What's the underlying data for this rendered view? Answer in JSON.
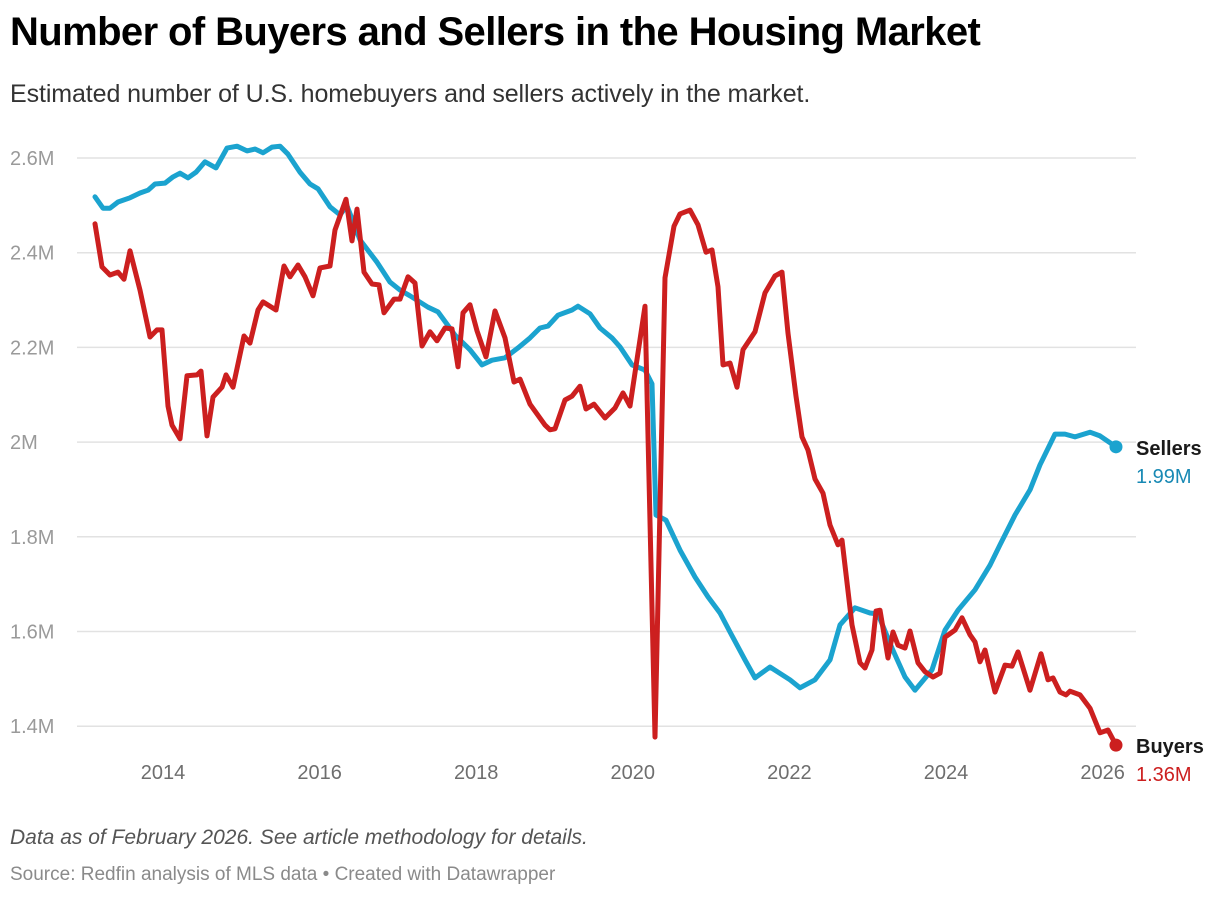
{
  "header": {
    "title": "Number of Buyers and Sellers in the Housing Market",
    "subtitle": "Estimated number of U.S. homebuyers and sellers actively in the market."
  },
  "footer": {
    "notes": "Data as of February 2026. See article methodology for details.",
    "source_prefix": "Source: ",
    "source": "Redfin analysis of MLS data",
    "separator": " • ",
    "credit": "Created with Datawrapper"
  },
  "chart_data": {
    "type": "line",
    "title": "Number of Buyers and Sellers in the Housing Market",
    "subtitle": "Estimated number of U.S. homebuyers and sellers actively in the market.",
    "xlabel": "",
    "ylabel": "",
    "x_unit": "year (decimal)",
    "y_unit": "millions",
    "xlim": [
      2013.0,
      2026.2
    ],
    "ylim": [
      1.36,
      2.66
    ],
    "grid": true,
    "legend": "direct labels at line ends (right)",
    "y_ticks": [
      1.4,
      1.6,
      1.8,
      2.0,
      2.2,
      2.4,
      2.6
    ],
    "y_tick_labels": [
      "1.4M",
      "1.6M",
      "1.8M",
      "2M",
      "2.2M",
      "2.4M",
      "2.6M"
    ],
    "x_ticks": [
      2014,
      2016,
      2018,
      2020,
      2022,
      2024,
      2026
    ],
    "x_tick_labels": [
      "2014",
      "2016",
      "2018",
      "2020",
      "2022",
      "2024",
      "2026"
    ],
    "series": [
      {
        "name": "Sellers",
        "end_label": "1.99M",
        "color": "#1ba3cf",
        "label_color": "#1889b4",
        "points": [
          [
            2013.132,
            2.518
          ],
          [
            2013.234,
            2.494
          ],
          [
            2013.323,
            2.494
          ],
          [
            2013.425,
            2.507
          ],
          [
            2013.579,
            2.516
          ],
          [
            2013.706,
            2.526
          ],
          [
            2013.808,
            2.532
          ],
          [
            2013.898,
            2.545
          ],
          [
            2014.026,
            2.547
          ],
          [
            2014.128,
            2.56
          ],
          [
            2014.217,
            2.568
          ],
          [
            2014.319,
            2.558
          ],
          [
            2014.421,
            2.57
          ],
          [
            2014.536,
            2.592
          ],
          [
            2014.677,
            2.579
          ],
          [
            2014.817,
            2.621
          ],
          [
            2014.945,
            2.625
          ],
          [
            2015.073,
            2.615
          ],
          [
            2015.175,
            2.619
          ],
          [
            2015.277,
            2.611
          ],
          [
            2015.392,
            2.623
          ],
          [
            2015.494,
            2.625
          ],
          [
            2015.596,
            2.608
          ],
          [
            2015.75,
            2.57
          ],
          [
            2015.877,
            2.545
          ],
          [
            2015.98,
            2.535
          ],
          [
            2016.133,
            2.497
          ],
          [
            2016.261,
            2.48
          ],
          [
            2016.35,
            2.499
          ],
          [
            2016.516,
            2.427
          ],
          [
            2016.733,
            2.38
          ],
          [
            2016.899,
            2.338
          ],
          [
            2017.027,
            2.321
          ],
          [
            2017.155,
            2.309
          ],
          [
            2017.384,
            2.285
          ],
          [
            2017.512,
            2.275
          ],
          [
            2017.729,
            2.226
          ],
          [
            2017.921,
            2.195
          ],
          [
            2018.074,
            2.163
          ],
          [
            2018.202,
            2.173
          ],
          [
            2018.368,
            2.178
          ],
          [
            2018.534,
            2.199
          ],
          [
            2018.687,
            2.22
          ],
          [
            2018.815,
            2.241
          ],
          [
            2018.917,
            2.245
          ],
          [
            2019.045,
            2.268
          ],
          [
            2019.224,
            2.279
          ],
          [
            2019.3,
            2.287
          ],
          [
            2019.453,
            2.271
          ],
          [
            2019.581,
            2.241
          ],
          [
            2019.734,
            2.22
          ],
          [
            2019.837,
            2.201
          ],
          [
            2019.99,
            2.163
          ],
          [
            2020.156,
            2.152
          ],
          [
            2020.245,
            2.123
          ],
          [
            2020.296,
            1.846
          ],
          [
            2020.424,
            1.835
          ],
          [
            2020.603,
            1.772
          ],
          [
            2020.794,
            1.715
          ],
          [
            2020.96,
            1.673
          ],
          [
            2021.114,
            1.639
          ],
          [
            2021.241,
            1.599
          ],
          [
            2021.433,
            1.54
          ],
          [
            2021.561,
            1.502
          ],
          [
            2021.752,
            1.525
          ],
          [
            2022.008,
            1.498
          ],
          [
            2022.135,
            1.481
          ],
          [
            2022.327,
            1.498
          ],
          [
            2022.519,
            1.54
          ],
          [
            2022.646,
            1.614
          ],
          [
            2022.838,
            1.65
          ],
          [
            2023.029,
            1.639
          ],
          [
            2023.132,
            1.637
          ],
          [
            2023.31,
            1.565
          ],
          [
            2023.476,
            1.504
          ],
          [
            2023.604,
            1.476
          ],
          [
            2023.821,
            1.519
          ],
          [
            2023.987,
            1.603
          ],
          [
            2024.153,
            1.645
          ],
          [
            2024.37,
            1.688
          ],
          [
            2024.562,
            1.74
          ],
          [
            2024.69,
            1.783
          ],
          [
            2024.881,
            1.846
          ],
          [
            2025.073,
            1.899
          ],
          [
            2025.201,
            1.952
          ],
          [
            2025.392,
            2.017
          ],
          [
            2025.52,
            2.017
          ],
          [
            2025.648,
            2.011
          ],
          [
            2025.839,
            2.021
          ],
          [
            2025.967,
            2.013
          ],
          [
            2026.171,
            1.99
          ]
        ]
      },
      {
        "name": "Buyers",
        "end_label": "1.36M",
        "color": "#cc1f1f",
        "label_color": "#cc1f1f",
        "points": [
          [
            2013.132,
            2.461
          ],
          [
            2013.221,
            2.37
          ],
          [
            2013.323,
            2.353
          ],
          [
            2013.425,
            2.359
          ],
          [
            2013.502,
            2.344
          ],
          [
            2013.579,
            2.404
          ],
          [
            2013.706,
            2.321
          ],
          [
            2013.834,
            2.222
          ],
          [
            2013.923,
            2.237
          ],
          [
            2013.987,
            2.237
          ],
          [
            2014.064,
            2.076
          ],
          [
            2014.115,
            2.036
          ],
          [
            2014.217,
            2.007
          ],
          [
            2014.307,
            2.14
          ],
          [
            2014.434,
            2.142
          ],
          [
            2014.485,
            2.15
          ],
          [
            2014.562,
            2.013
          ],
          [
            2014.639,
            2.095
          ],
          [
            2014.754,
            2.116
          ],
          [
            2014.805,
            2.142
          ],
          [
            2014.894,
            2.116
          ],
          [
            2015.034,
            2.224
          ],
          [
            2015.111,
            2.209
          ],
          [
            2015.213,
            2.279
          ],
          [
            2015.277,
            2.296
          ],
          [
            2015.443,
            2.279
          ],
          [
            2015.545,
            2.372
          ],
          [
            2015.622,
            2.349
          ],
          [
            2015.724,
            2.374
          ],
          [
            2015.814,
            2.349
          ],
          [
            2015.916,
            2.309
          ],
          [
            2016.005,
            2.368
          ],
          [
            2016.133,
            2.372
          ],
          [
            2016.197,
            2.448
          ],
          [
            2016.337,
            2.513
          ],
          [
            2016.414,
            2.425
          ],
          [
            2016.478,
            2.492
          ],
          [
            2016.567,
            2.359
          ],
          [
            2016.669,
            2.334
          ],
          [
            2016.759,
            2.332
          ],
          [
            2016.822,
            2.273
          ],
          [
            2016.95,
            2.302
          ],
          [
            2017.027,
            2.302
          ],
          [
            2017.129,
            2.349
          ],
          [
            2017.218,
            2.336
          ],
          [
            2017.308,
            2.203
          ],
          [
            2017.41,
            2.233
          ],
          [
            2017.499,
            2.214
          ],
          [
            2017.602,
            2.241
          ],
          [
            2017.691,
            2.239
          ],
          [
            2017.768,
            2.159
          ],
          [
            2017.831,
            2.273
          ],
          [
            2017.921,
            2.29
          ],
          [
            2018.01,
            2.235
          ],
          [
            2018.125,
            2.18
          ],
          [
            2018.24,
            2.277
          ],
          [
            2018.368,
            2.22
          ],
          [
            2018.483,
            2.127
          ],
          [
            2018.559,
            2.133
          ],
          [
            2018.687,
            2.08
          ],
          [
            2018.879,
            2.036
          ],
          [
            2018.943,
            2.026
          ],
          [
            2019.006,
            2.028
          ],
          [
            2019.134,
            2.089
          ],
          [
            2019.224,
            2.097
          ],
          [
            2019.326,
            2.118
          ],
          [
            2019.402,
            2.07
          ],
          [
            2019.504,
            2.08
          ],
          [
            2019.645,
            2.051
          ],
          [
            2019.773,
            2.072
          ],
          [
            2019.875,
            2.104
          ],
          [
            2019.964,
            2.076
          ],
          [
            2020.156,
            2.287
          ],
          [
            2020.284,
            1.377
          ],
          [
            2020.411,
            2.347
          ],
          [
            2020.526,
            2.456
          ],
          [
            2020.603,
            2.482
          ],
          [
            2020.731,
            2.49
          ],
          [
            2020.833,
            2.459
          ],
          [
            2020.935,
            2.401
          ],
          [
            2021.011,
            2.406
          ],
          [
            2021.088,
            2.328
          ],
          [
            2021.152,
            2.163
          ],
          [
            2021.241,
            2.167
          ],
          [
            2021.331,
            2.116
          ],
          [
            2021.407,
            2.195
          ],
          [
            2021.561,
            2.233
          ],
          [
            2021.688,
            2.315
          ],
          [
            2021.816,
            2.351
          ],
          [
            2021.905,
            2.359
          ],
          [
            2021.982,
            2.23
          ],
          [
            2022.084,
            2.097
          ],
          [
            2022.161,
            2.011
          ],
          [
            2022.238,
            1.983
          ],
          [
            2022.327,
            1.922
          ],
          [
            2022.429,
            1.892
          ],
          [
            2022.519,
            1.825
          ],
          [
            2022.621,
            1.783
          ],
          [
            2022.672,
            1.793
          ],
          [
            2022.8,
            1.614
          ],
          [
            2022.902,
            1.534
          ],
          [
            2022.966,
            1.523
          ],
          [
            2023.055,
            1.561
          ],
          [
            2023.106,
            1.643
          ],
          [
            2023.157,
            1.645
          ],
          [
            2023.259,
            1.544
          ],
          [
            2023.323,
            1.599
          ],
          [
            2023.387,
            1.571
          ],
          [
            2023.476,
            1.565
          ],
          [
            2023.54,
            1.601
          ],
          [
            2023.642,
            1.534
          ],
          [
            2023.732,
            1.515
          ],
          [
            2023.834,
            1.504
          ],
          [
            2023.923,
            1.512
          ],
          [
            2023.987,
            1.588
          ],
          [
            2024.115,
            1.603
          ],
          [
            2024.204,
            1.629
          ],
          [
            2024.307,
            1.593
          ],
          [
            2024.37,
            1.578
          ],
          [
            2024.434,
            1.536
          ],
          [
            2024.498,
            1.561
          ],
          [
            2024.626,
            1.472
          ],
          [
            2024.754,
            1.529
          ],
          [
            2024.843,
            1.527
          ],
          [
            2024.92,
            1.557
          ],
          [
            2025.073,
            1.476
          ],
          [
            2025.213,
            1.553
          ],
          [
            2025.303,
            1.498
          ],
          [
            2025.367,
            1.502
          ],
          [
            2025.456,
            1.472
          ],
          [
            2025.533,
            1.466
          ],
          [
            2025.584,
            1.474
          ],
          [
            2025.712,
            1.466
          ],
          [
            2025.839,
            1.438
          ],
          [
            2025.967,
            1.386
          ],
          [
            2026.069,
            1.392
          ],
          [
            2026.171,
            1.36
          ]
        ]
      }
    ]
  }
}
